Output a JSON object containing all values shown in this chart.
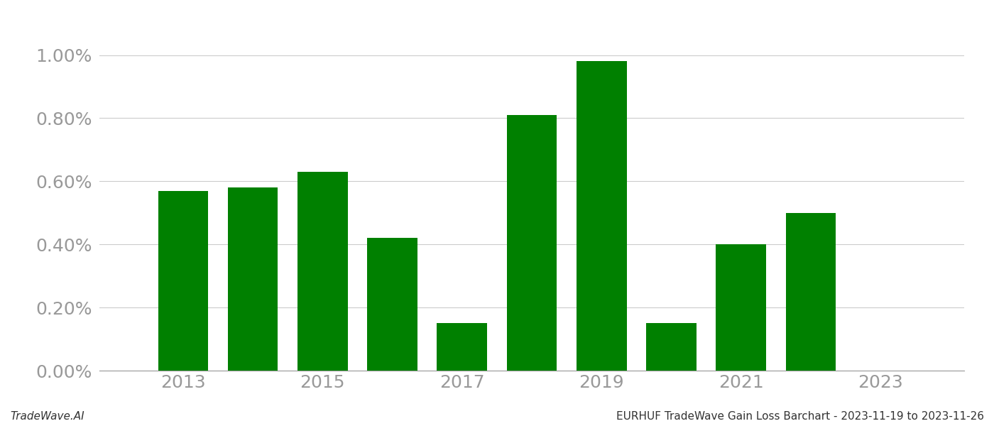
{
  "years": [
    2013,
    2014,
    2015,
    2016,
    2017,
    2018,
    2019,
    2020,
    2021,
    2022
  ],
  "values": [
    0.0057,
    0.0058,
    0.0063,
    0.0042,
    0.0015,
    0.0081,
    0.0098,
    0.0015,
    0.004,
    0.005
  ],
  "bar_color": "#008000",
  "background_color": "#ffffff",
  "footer_left": "TradeWave.AI",
  "footer_right": "EURHUF TradeWave Gain Loss Barchart - 2023-11-19 to 2023-11-26",
  "ylim": [
    0,
    0.0108
  ],
  "yticks": [
    0.0,
    0.002,
    0.004,
    0.006,
    0.008,
    0.01
  ],
  "ytick_labels": [
    "0.00%",
    "0.20%",
    "0.40%",
    "0.60%",
    "0.80%",
    "1.00%"
  ],
  "xtick_positions": [
    2013,
    2015,
    2017,
    2019,
    2021,
    2023
  ],
  "xtick_labels": [
    "2013",
    "2015",
    "2017",
    "2019",
    "2021",
    "2023"
  ],
  "grid_color": "#cccccc",
  "spine_color": "#999999",
  "ytick_color": "#999999",
  "xtick_color": "#999999",
  "footer_fontsize": 11,
  "ytick_fontsize": 18,
  "xtick_fontsize": 18,
  "bar_width": 0.72
}
